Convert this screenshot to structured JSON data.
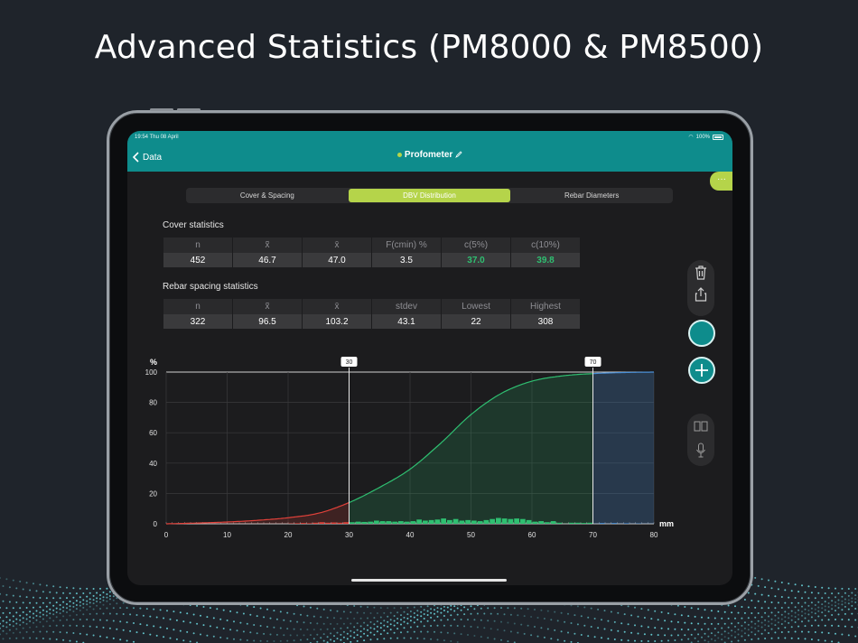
{
  "headline": "Advanced Statistics (PM8000 & PM8500)",
  "statusbar": {
    "time": "19:54 Thu 08 April",
    "battery": "100%"
  },
  "navbar": {
    "back_label": "Data",
    "title": "Profometer"
  },
  "tabs": [
    {
      "label": "Cover & Spacing",
      "active": false
    },
    {
      "label": "DBV Distribution",
      "active": true
    },
    {
      "label": "Rebar Diameters",
      "active": false
    }
  ],
  "more_label": "···",
  "cover": {
    "title": "Cover statistics",
    "headers": [
      "n",
      "x̃",
      "x̄",
      "F(cmin) %",
      "c(5%)",
      "c(10%)"
    ],
    "values": [
      "452",
      "46.7",
      "47.0",
      "3.5",
      "37.0",
      "39.8"
    ]
  },
  "spacing": {
    "title": "Rebar spacing statistics",
    "headers": [
      "n",
      "x̃",
      "x̄",
      "stdev",
      "Lowest",
      "Highest"
    ],
    "values": [
      "322",
      "96.5",
      "103.2",
      "43.1",
      "22",
      "308"
    ]
  },
  "chart_data": {
    "type": "area",
    "ylabel": "%",
    "xlabel": "mm",
    "xlim": [
      0,
      80
    ],
    "ylim": [
      0,
      100
    ],
    "x_ticks": [
      0,
      10,
      20,
      30,
      40,
      50,
      60,
      70,
      80
    ],
    "y_ticks": [
      0,
      20,
      40,
      60,
      80,
      100
    ],
    "markers": [
      30,
      70
    ],
    "colors": {
      "low": "#e0413a",
      "mid": "#2fbf71",
      "high": "#4a8fd6"
    },
    "cumulative": {
      "x": [
        0,
        5,
        10,
        15,
        20,
        25,
        30,
        35,
        40,
        45,
        50,
        55,
        60,
        65,
        70,
        75,
        80
      ],
      "y": [
        0,
        0.5,
        1.2,
        2.3,
        4,
        7,
        14,
        24,
        36,
        53,
        72,
        86,
        94,
        97.5,
        99,
        99.7,
        100
      ]
    },
    "histogram": {
      "x": [
        20,
        21,
        22,
        23,
        24,
        25,
        26,
        27,
        28,
        29,
        30,
        31,
        32,
        33,
        34,
        35,
        36,
        37,
        38,
        39,
        40,
        41,
        42,
        43,
        44,
        45,
        46,
        47,
        48,
        49,
        50,
        51,
        52,
        53,
        54,
        55,
        56,
        57,
        58,
        59,
        60,
        61,
        62,
        63,
        64,
        66,
        67,
        68,
        69,
        71,
        73,
        75,
        77
      ],
      "y": [
        0.5,
        1,
        1.5,
        1,
        2,
        3,
        2,
        2.5,
        2,
        3,
        3,
        4,
        3.5,
        4,
        6,
        5,
        5,
        4,
        5,
        4,
        5,
        8,
        6,
        7,
        8,
        10,
        7,
        9,
        6,
        7,
        6,
        5,
        7,
        9,
        11,
        10,
        9,
        10,
        9,
        7,
        4,
        5,
        3,
        5,
        2,
        2,
        2,
        1.5,
        2,
        1.5,
        1.5,
        1,
        0.5
      ]
    }
  },
  "icons": [
    "chevron-left-icon",
    "pencil-icon",
    "trash-icon",
    "share-icon",
    "plus-icon",
    "book-icon",
    "microphone-icon",
    "wifi-icon",
    "battery-icon"
  ]
}
